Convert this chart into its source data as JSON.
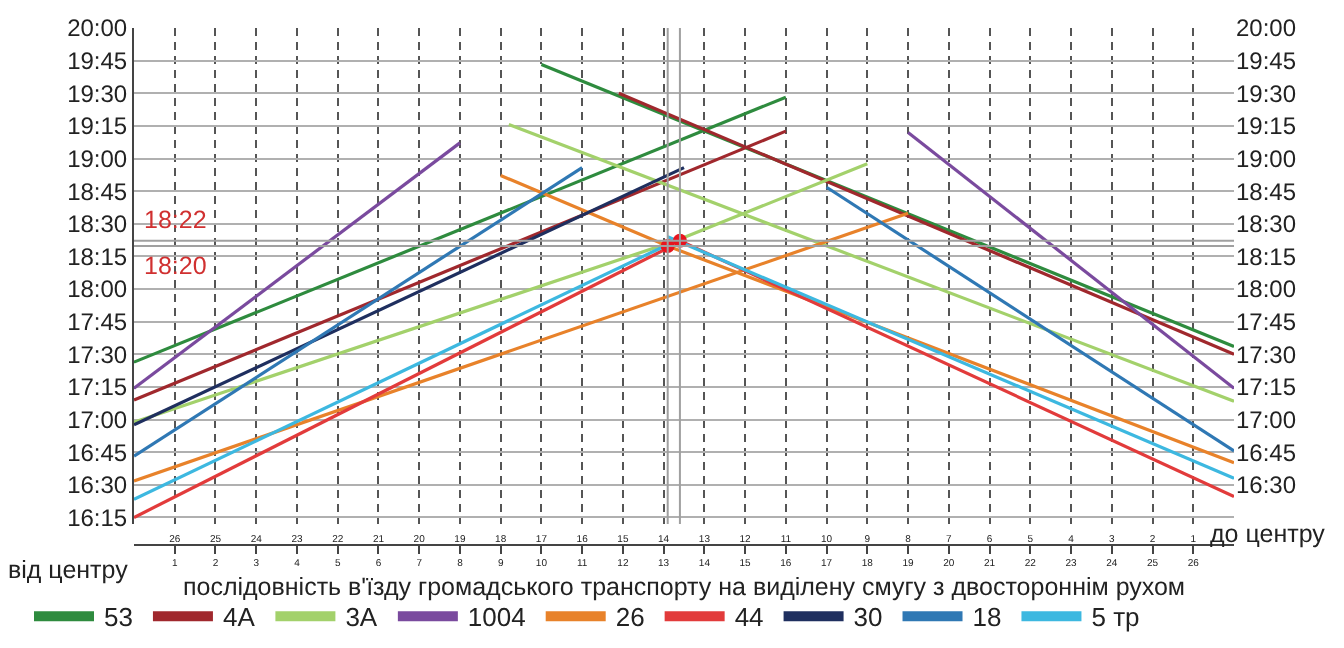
{
  "chart_data": {
    "type": "line",
    "xlabel": "послідовність в'їзду громадського транспорту на виділену смугу з двостороннім рухом",
    "annotations": [
      "від центру",
      "до центру"
    ],
    "xlim": [
      0,
      27
    ],
    "xticks": [
      1,
      2,
      3,
      4,
      5,
      6,
      7,
      8,
      9,
      10,
      11,
      12,
      13,
      14,
      15,
      16,
      17,
      18,
      19,
      20,
      21,
      22,
      23,
      24,
      25,
      26
    ],
    "x2lim": [
      27,
      0
    ],
    "x2ticks": [
      26,
      25,
      24,
      23,
      22,
      21,
      20,
      19,
      18,
      17,
      16,
      15,
      14,
      13,
      12,
      11,
      10,
      9,
      8,
      7,
      6,
      5,
      4,
      3,
      2,
      1
    ],
    "ylim": [
      16.2,
      20
    ],
    "yticks": [
      {
        "value": 16.25,
        "label": "16:15"
      },
      {
        "value": 16.5,
        "label": "16:30"
      },
      {
        "value": 16.75,
        "label": "16:45"
      },
      {
        "value": 17,
        "label": "17:00"
      },
      {
        "value": 17.25,
        "label": "17:15"
      },
      {
        "value": 17.5,
        "label": "17:30"
      },
      {
        "value": 17.75,
        "label": "17:45"
      },
      {
        "value": 18,
        "label": "18:00"
      },
      {
        "value": 18.25,
        "label": "18:15"
      },
      {
        "value": 18.5,
        "label": "18:30"
      },
      {
        "value": 18.75,
        "label": "18:45"
      },
      {
        "value": 19,
        "label": "19:00"
      },
      {
        "value": 19.25,
        "label": "19:15"
      },
      {
        "value": 19.5,
        "label": "19:30"
      },
      {
        "value": 19.75,
        "label": "19:45"
      },
      {
        "value": 20,
        "label": "20:00"
      }
    ],
    "y2lim": [
      16.2,
      20
    ],
    "y2ticks": [
      {
        "value": 16.5,
        "label": "16:30"
      },
      {
        "value": 16.75,
        "label": "16:45"
      },
      {
        "value": 17,
        "label": "17:00"
      },
      {
        "value": 17.25,
        "label": "17:15"
      },
      {
        "value": 17.5,
        "label": "17:30"
      },
      {
        "value": 17.75,
        "label": "17:45"
      },
      {
        "value": 18,
        "label": "18:00"
      },
      {
        "value": 18.25,
        "label": "18:15"
      },
      {
        "value": 18.5,
        "label": "18:30"
      },
      {
        "value": 18.75,
        "label": "18:45"
      },
      {
        "value": 19,
        "label": "19:00"
      },
      {
        "value": 19.25,
        "label": "19:15"
      },
      {
        "value": 19.5,
        "label": "19:30"
      },
      {
        "value": 19.75,
        "label": "19:45"
      },
      {
        "value": 20,
        "label": "20:00"
      }
    ],
    "grid": true,
    "legend": "bottom",
    "marker": "none",
    "line_style": "solid",
    "ref_lines": [
      {
        "axis": "y",
        "value": 18.37,
        "label": "18:22",
        "color": "#a0a0a0"
      },
      {
        "axis": "y",
        "value": 18.33,
        "label": "18:20",
        "color": "#a0a0a0"
      },
      {
        "axis": "x",
        "value": 13.1,
        "color": "#a0a0a0"
      },
      {
        "axis": "x",
        "value": 13.4,
        "color": "#a0a0a0"
      }
    ],
    "series": [
      {
        "name": "53",
        "color": "#2e8b3e",
        "x": [
          0,
          16,
          null,
          10,
          27
        ],
        "values": [
          17.44,
          19.47,
          null,
          19.72,
          17.56
        ]
      },
      {
        "name": "4A",
        "color": "#a0282d",
        "x": [
          0,
          16,
          null,
          11.9,
          27
        ],
        "values": [
          17.15,
          19.21,
          null,
          19.5,
          17.5
        ]
      },
      {
        "name": "3A",
        "color": "#a3d16b",
        "x": [
          0,
          13.3,
          18,
          null,
          9.2,
          27
        ],
        "values": [
          16.98,
          18.37,
          18.96,
          null,
          19.26,
          17.14
        ]
      },
      {
        "name": "1004",
        "color": "#7a4a9e",
        "x": [
          0,
          8,
          null,
          19,
          27
        ],
        "values": [
          17.24,
          19.12,
          null,
          19.2,
          17.24
        ]
      },
      {
        "name": "26",
        "color": "#e8822a",
        "x": [
          0,
          19,
          null,
          9,
          13.1,
          27
        ],
        "values": [
          16.53,
          18.58,
          null,
          18.87,
          18.33,
          16.67
        ]
      },
      {
        "name": "44",
        "color": "#e23b3b",
        "x": [
          0,
          13.2,
          null,
          13.4,
          27
        ],
        "values": [
          16.25,
          18.33,
          null,
          18.37,
          16.41
        ]
      },
      {
        "name": "30",
        "color": "#1f2f5f",
        "x": [
          0,
          13.5
        ],
        "values": [
          16.96,
          18.93
        ]
      },
      {
        "name": "18",
        "color": "#2f78b4",
        "x": [
          0,
          11,
          null,
          17,
          27
        ],
        "values": [
          16.72,
          18.93,
          null,
          18.78,
          16.76
        ]
      },
      {
        "name": "5 тр",
        "color": "#3db8e0",
        "x": [
          0,
          13.3,
          null,
          13.1,
          27
        ],
        "values": [
          16.39,
          18.37,
          null,
          18.4,
          16.55
        ]
      },
      {
        "type": "scatter",
        "marker": "circle",
        "color": "#e8141e",
        "x": [
          13.1,
          13.4
        ],
        "values": [
          18.33,
          18.37
        ]
      }
    ]
  }
}
